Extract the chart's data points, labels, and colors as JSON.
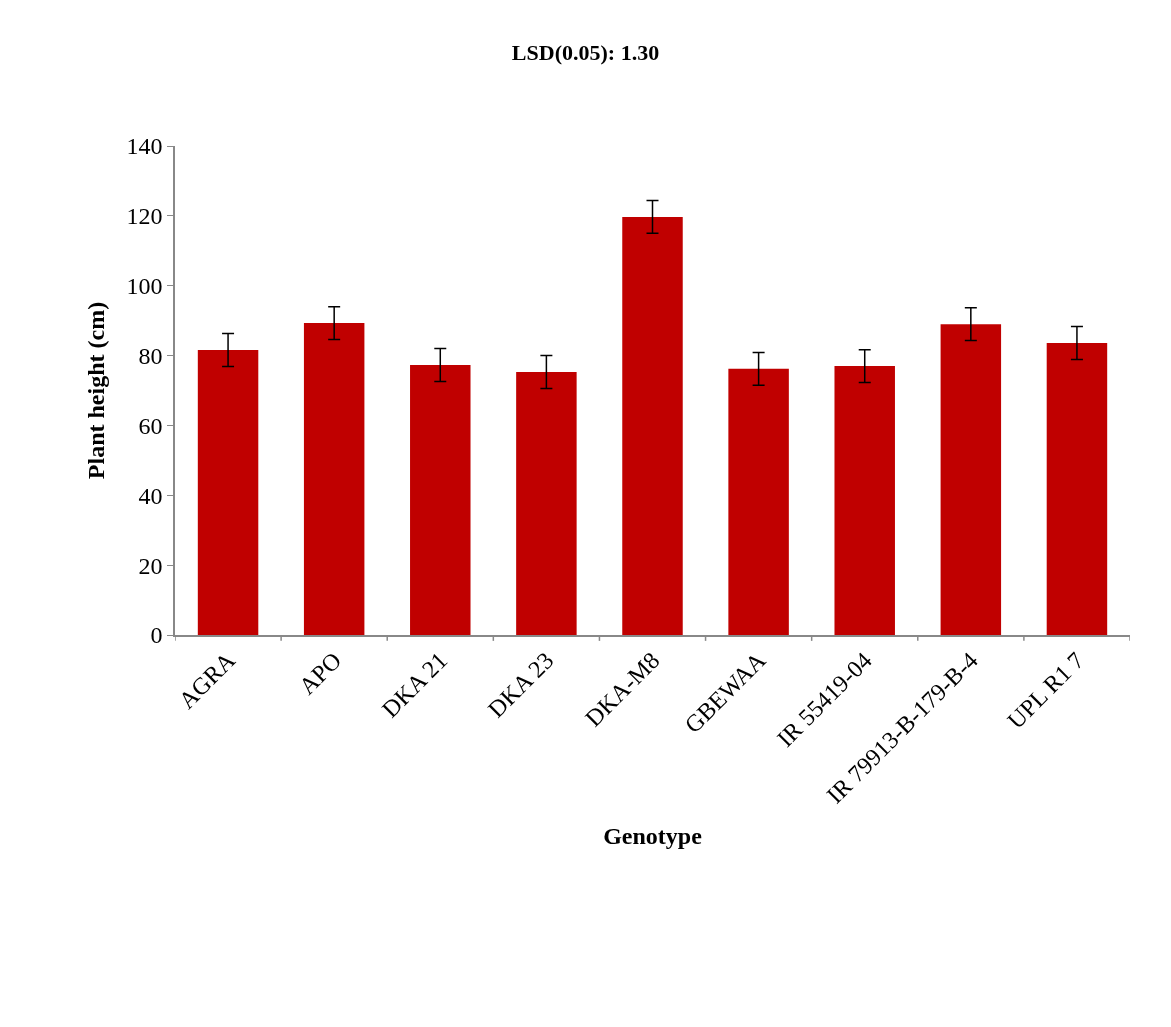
{
  "chart_data": {
    "type": "bar",
    "title": "LSD(0.05): 1.30",
    "xlabel": "Genotype",
    "ylabel": "Plant height (cm)",
    "categories": [
      "AGRA",
      "APO",
      "DKA 21",
      "DKA 23",
      "DKA-M8",
      "GBEWAA",
      "IR 55419-04",
      "IR 79913-B-179-B-4",
      "UPL R1 7"
    ],
    "values": [
      81.6,
      89.3,
      77.3,
      75.3,
      119.7,
      76.2,
      77.0,
      89.0,
      83.6
    ],
    "errors": [
      4.7,
      4.7,
      4.7,
      4.7,
      4.7,
      4.7,
      4.7,
      4.7,
      4.7
    ],
    "color": "#c00000",
    "ylim": [
      0,
      140
    ],
    "yticks": [
      0,
      20,
      40,
      60,
      80,
      100,
      120,
      140
    ]
  }
}
